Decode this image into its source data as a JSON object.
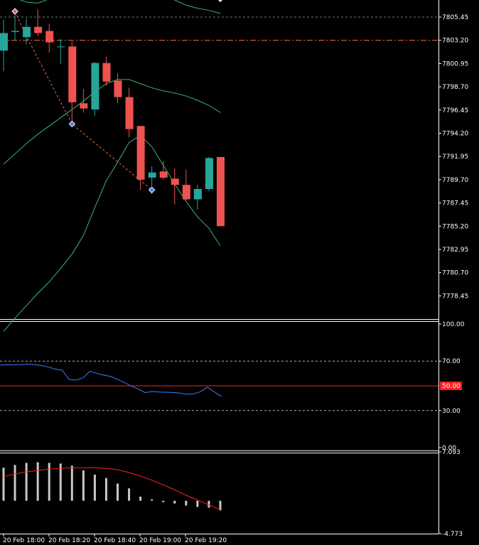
{
  "colors": {
    "background": "#000000",
    "bull": "#26a69a",
    "bear": "#ef5350",
    "bands": "#3cb371",
    "zigzag": "#ff6a3d",
    "hline": "#ff6a3d",
    "grid": "#5a8a5a",
    "rsi_line": "#3d7bff",
    "rsi_level": "#ff2020",
    "macd_hist": "#c8c8c8",
    "macd_signal": "#ff2020",
    "axis_text": "#ffffff",
    "rsi_level_badge": "#ff2020"
  },
  "chart_data": [
    {
      "type": "candlestick",
      "name": "price",
      "ylim": [
        7776.2,
        7807.0
      ],
      "ticks": [
        "7805.45",
        "7803.20",
        "7800.95",
        "7798.70",
        "7796.45",
        "7794.20",
        "7791.95",
        "7789.70",
        "7787.45",
        "7785.20",
        "7782.95",
        "7780.70",
        "7778.45"
      ],
      "tick_values": [
        7805.45,
        7803.2,
        7800.95,
        7798.7,
        7796.45,
        7794.2,
        7791.95,
        7789.7,
        7787.45,
        7785.2,
        7782.95,
        7780.7,
        7778.45
      ],
      "dashed_level": 7805.45,
      "dashdot_level": 7803.2,
      "candles": [
        {
          "o": 7802.2,
          "h": 7805.2,
          "l": 7800.2,
          "c": 7803.9
        },
        {
          "o": 7804.0,
          "h": 7805.8,
          "l": 7803.2,
          "c": 7804.1
        },
        {
          "o": 7803.5,
          "h": 7805.3,
          "l": 7802.8,
          "c": 7804.5
        },
        {
          "o": 7804.5,
          "h": 7806.2,
          "l": 7803.6,
          "c": 7803.9
        },
        {
          "o": 7804.1,
          "h": 7804.8,
          "l": 7802.0,
          "c": 7803.0
        },
        {
          "o": 7802.6,
          "h": 7803.3,
          "l": 7800.9,
          "c": 7802.6
        },
        {
          "o": 7802.6,
          "h": 7803.1,
          "l": 7794.8,
          "c": 7797.2
        },
        {
          "o": 7797.1,
          "h": 7798.5,
          "l": 7796.2,
          "c": 7796.6
        },
        {
          "o": 7796.5,
          "h": 7801.1,
          "l": 7795.9,
          "c": 7801.0
        },
        {
          "o": 7801.0,
          "h": 7801.6,
          "l": 7798.8,
          "c": 7799.2
        },
        {
          "o": 7799.3,
          "h": 7800.0,
          "l": 7797.1,
          "c": 7797.7
        },
        {
          "o": 7797.7,
          "h": 7798.6,
          "l": 7793.8,
          "c": 7794.6
        },
        {
          "o": 7794.9,
          "h": 7794.9,
          "l": 7788.7,
          "c": 7789.7
        },
        {
          "o": 7789.9,
          "h": 7791.0,
          "l": 7788.3,
          "c": 7790.4
        },
        {
          "o": 7790.5,
          "h": 7791.5,
          "l": 7789.7,
          "c": 7789.9
        },
        {
          "o": 7789.8,
          "h": 7790.8,
          "l": 7787.3,
          "c": 7789.2
        },
        {
          "o": 7789.2,
          "h": 7790.7,
          "l": 7787.7,
          "c": 7787.8
        },
        {
          "o": 7787.8,
          "h": 7789.2,
          "l": 7786.8,
          "c": 7788.8
        },
        {
          "o": 7788.8,
          "h": 7791.9,
          "l": 7788.6,
          "c": 7791.8
        },
        {
          "o": 7791.9,
          "h": 7791.9,
          "l": 7785.2,
          "c": 7785.2
        }
      ],
      "upper_band": [
        7807.8,
        7807.3,
        7806.9,
        7806.8,
        7807.2,
        7807.6,
        7808.0,
        7808.6,
        7809.3,
        7809.7,
        7809.2,
        7808.8,
        7808.5,
        7808.2,
        7807.6,
        7807.1,
        7806.6,
        7806.3,
        7806.1,
        7805.8
      ],
      "middle_band": [
        7791.2,
        7792.2,
        7793.2,
        7794.1,
        7794.9,
        7795.7,
        7796.5,
        7797.3,
        7798.2,
        7799.0,
        7799.4,
        7799.4,
        7799.0,
        7798.6,
        7798.3,
        7798.1,
        7797.8,
        7797.4,
        7796.9,
        7796.2
      ],
      "lower_band": [
        7775.0,
        7776.3,
        7777.5,
        7778.7,
        7779.8,
        7781.1,
        7782.5,
        7784.3,
        7787.0,
        7789.6,
        7791.4,
        7793.3,
        7794.0,
        7792.9,
        7791.1,
        7789.3,
        7787.6,
        7786.1,
        7785.0,
        7783.3
      ],
      "zigzag": [
        [
          1,
          7806.0
        ],
        [
          2,
          7803.6
        ],
        [
          6,
          7795.1
        ],
        [
          13,
          7788.7
        ]
      ],
      "markers": [
        {
          "index": 1,
          "value": 7806.0,
          "kind": "high"
        },
        {
          "index": 6,
          "value": 7795.1,
          "kind": "low"
        },
        {
          "index": 13,
          "value": 7788.7,
          "kind": "low"
        }
      ]
    },
    {
      "type": "line",
      "name": "rsi",
      "ylim": [
        0,
        100
      ],
      "ticks": [
        "100.00",
        "70.00",
        "30.00",
        "0.00"
      ],
      "tick_values": [
        100,
        70,
        30,
        0
      ],
      "dashed_levels": [
        70,
        30
      ],
      "level": 50,
      "level_label": "50.00",
      "series": [
        {
          "values": [
            66.9,
            67.1,
            67.0,
            67.2,
            67.5,
            67.1,
            66.4,
            65.2,
            63.6,
            62.6,
            55.1,
            54.6,
            56.5,
            61.8,
            60.1,
            58.7,
            57.6,
            55.2,
            52.6,
            49.9,
            47.4,
            44.5,
            45.5,
            45.0,
            44.8,
            44.6,
            44.2,
            43.2,
            43.5,
            45.2,
            48.9,
            45.1,
            41.5
          ]
        }
      ]
    },
    {
      "type": "bar",
      "name": "macd",
      "ylim": [
        -4.773,
        7.093
      ],
      "ticks": [
        "7.093",
        "-4.773"
      ],
      "tick_values": [
        7.093,
        -4.773
      ],
      "histogram": [
        4.8,
        5.2,
        5.5,
        5.6,
        5.5,
        5.4,
        5.1,
        4.4,
        3.8,
        3.3,
        2.5,
        1.8,
        0.6,
        0.2,
        -0.2,
        -0.4,
        -0.7,
        -0.9,
        -1.0,
        -1.4
      ],
      "signal": [
        3.5,
        3.9,
        4.2,
        4.4,
        4.6,
        4.7,
        4.8,
        4.8,
        4.8,
        4.7,
        4.5,
        4.1,
        3.6,
        3.0,
        2.3,
        1.6,
        0.8,
        0.1,
        -0.6,
        -1.3
      ],
      "x_labels": [
        "20 Feb 18:00",
        "20 Feb 18:20",
        "20 Feb 18:40",
        "20 Feb 19:00",
        "20 Feb 19:20"
      ]
    }
  ]
}
